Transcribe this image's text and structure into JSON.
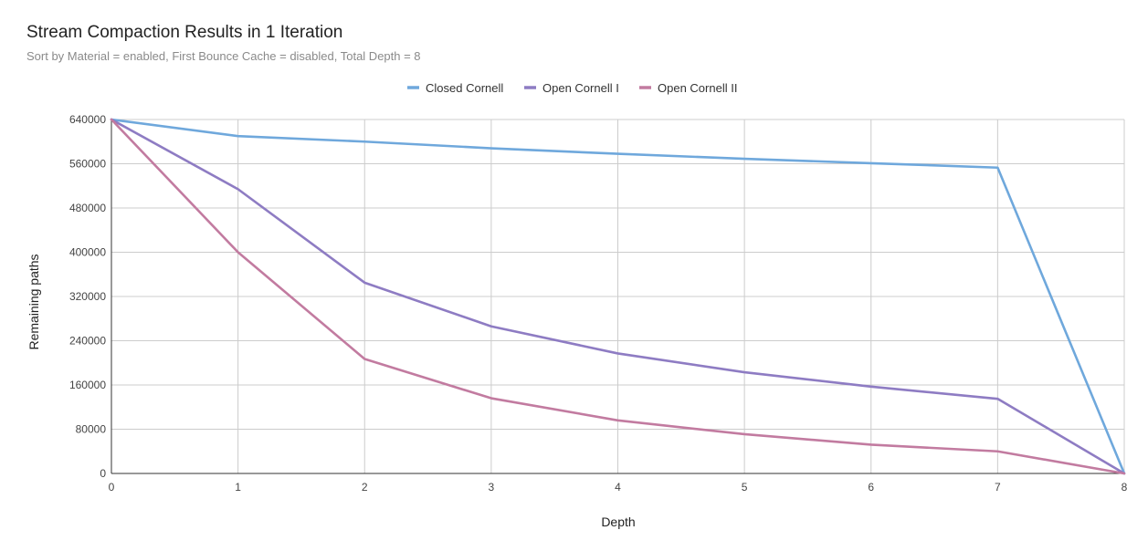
{
  "chart_data": {
    "type": "line",
    "title": "Stream Compaction Results in 1 Iteration",
    "subtitle": "Sort by Material = enabled, First Bounce Cache = disabled, Total Depth = 8",
    "xlabel": "Depth",
    "ylabel": "Remaining paths",
    "x": [
      0,
      1,
      2,
      3,
      4,
      5,
      6,
      7,
      8
    ],
    "xlim": [
      0,
      8
    ],
    "ylim": [
      0,
      640000
    ],
    "yticks": [
      0,
      80000,
      160000,
      240000,
      320000,
      400000,
      480000,
      560000,
      640000
    ],
    "grid": true,
    "legend_position": "top-center",
    "series": [
      {
        "name": "Closed Cornell",
        "color": "#6fa8dc",
        "values": [
          640000,
          610000,
          600000,
          588000,
          578000,
          569000,
          561000,
          553000,
          0
        ]
      },
      {
        "name": "Open Cornell I",
        "color": "#8e7cc3",
        "values": [
          640000,
          514000,
          345000,
          266000,
          217000,
          183000,
          157000,
          135000,
          0
        ]
      },
      {
        "name": "Open Cornell II",
        "color": "#c27ba0",
        "values": [
          640000,
          400000,
          207000,
          136000,
          96000,
          71000,
          52000,
          40000,
          0
        ]
      }
    ]
  }
}
